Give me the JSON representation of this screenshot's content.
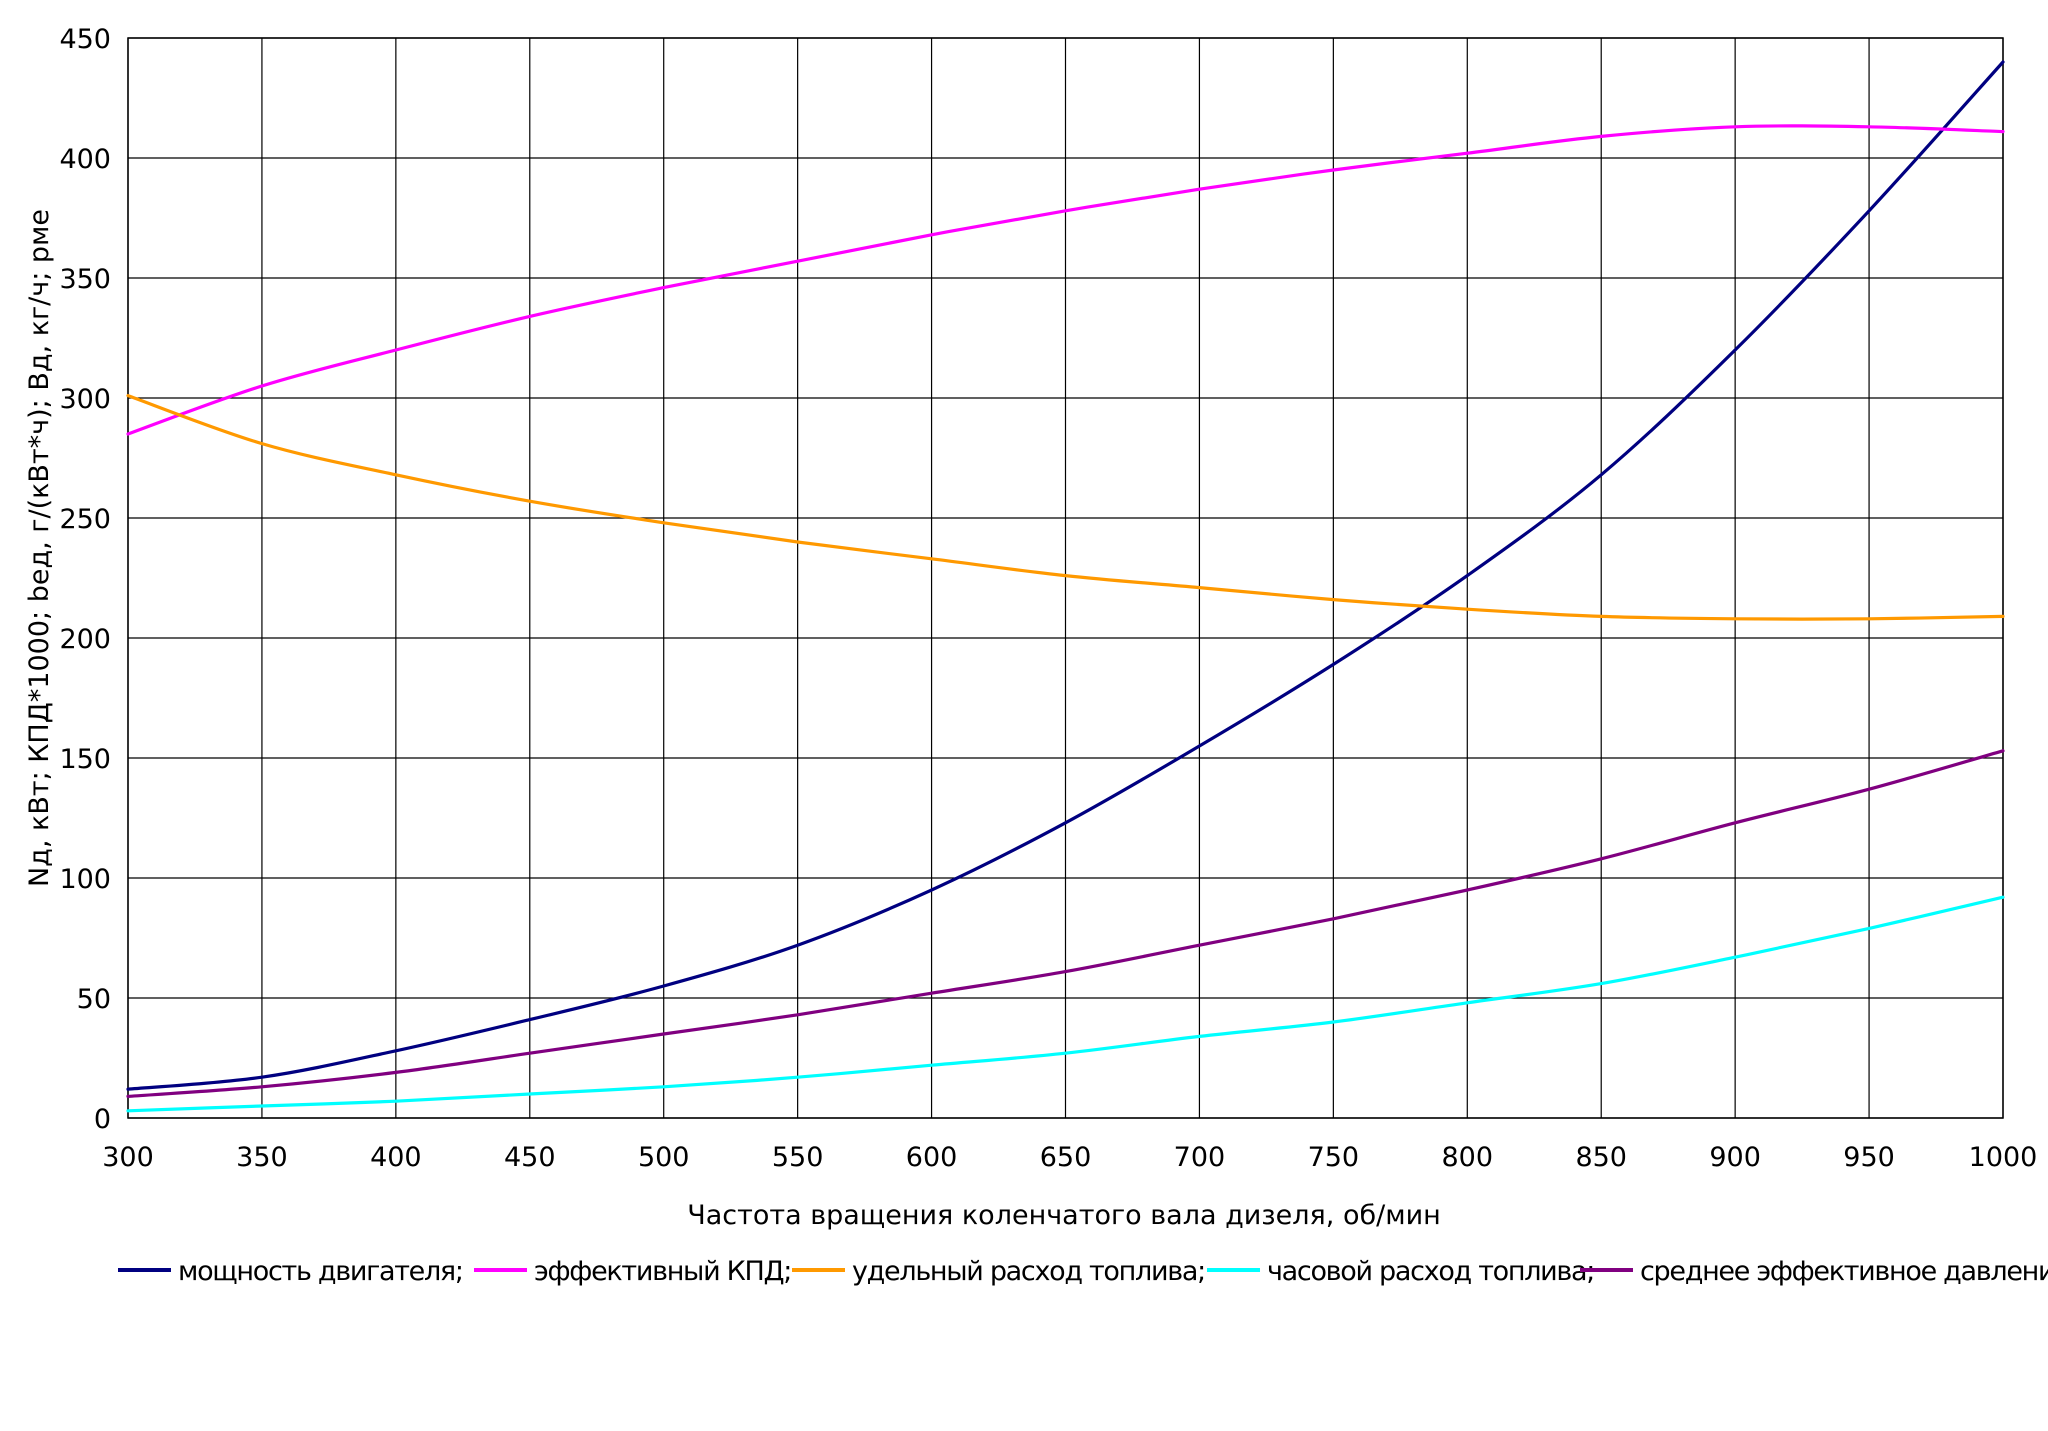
{
  "chart_data": {
    "type": "line",
    "title": "",
    "xlabel": "Частота вращения коленчатого вала дизеля, об/мин",
    "ylabel": "Nд, кВт;  КПД*1000;  bед, г/(кВт*ч);  Bд, кг/ч;  рме",
    "xlim": [
      300,
      1000
    ],
    "ylim": [
      0,
      450
    ],
    "grid": true,
    "legend_position": "bottom",
    "x_ticks": [
      "300",
      "350",
      "400",
      "450",
      "500",
      "550",
      "600",
      "650",
      "700",
      "750",
      "800",
      "850",
      "900",
      "950",
      "1000"
    ],
    "y_ticks": [
      "0",
      "50",
      "100",
      "150",
      "200",
      "250",
      "300",
      "350",
      "400",
      "450"
    ],
    "x": [
      300,
      350,
      400,
      450,
      500,
      550,
      600,
      650,
      700,
      750,
      800,
      850,
      900,
      950,
      1000
    ],
    "series": [
      {
        "name": "мощность двигателя;",
        "color": "#000080",
        "values": [
          12,
          17,
          28,
          41,
          55,
          72,
          95,
          123,
          155,
          189,
          226,
          268,
          320,
          378,
          440
        ]
      },
      {
        "name": "эффективный КПД;",
        "color": "#ff00ff",
        "values": [
          285,
          305,
          320,
          334,
          346,
          357,
          368,
          378,
          387,
          395,
          402,
          409,
          413,
          413,
          411
        ]
      },
      {
        "name": "удельный расход топлива;",
        "color": "#ff9900",
        "values": [
          301,
          281,
          268,
          257,
          248,
          240,
          233,
          226,
          221,
          216,
          212,
          209,
          208,
          208,
          209
        ]
      },
      {
        "name": "часовой расход топлива;",
        "color": "#00ffff",
        "values": [
          3,
          5,
          7,
          10,
          13,
          17,
          22,
          27,
          34,
          40,
          48,
          56,
          67,
          79,
          92
        ]
      },
      {
        "name": "среднее эффективное давление.",
        "color": "#800080",
        "values": [
          9,
          13,
          19,
          27,
          35,
          43,
          52,
          61,
          72,
          83,
          95,
          108,
          123,
          137,
          153
        ]
      }
    ]
  }
}
